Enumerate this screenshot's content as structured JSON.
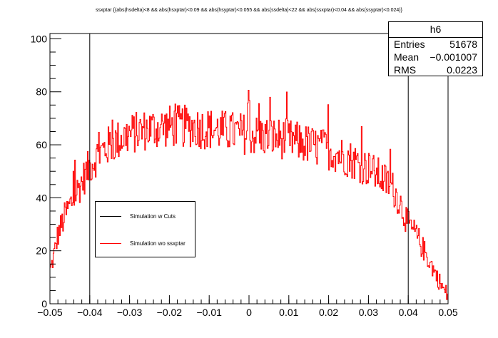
{
  "chart_data": {
    "type": "histogram",
    "title": "ssxptar {(abs(hsdelta)<8 && abs(hsxptar)<0.09 && abs(hsyptar)<0.055 && abs(ssdelta)<22 && abs(ssxptar)<0.04 && abs(ssyptar)<0.024)}",
    "xlim": [
      -0.05,
      0.05
    ],
    "ylim": [
      0,
      102
    ],
    "xticks": [
      -0.05,
      -0.04,
      -0.03,
      -0.02,
      -0.01,
      0,
      0.01,
      0.02,
      0.03,
      0.04,
      0.05
    ],
    "xtick_labels": [
      "−0.05",
      "−0.04",
      "−0.03",
      "−0.02",
      "−0.01",
      "0",
      "0.01",
      "0.02",
      "0.03",
      "0.04",
      "0.05"
    ],
    "yticks": [
      0,
      20,
      40,
      60,
      80,
      100
    ],
    "ytick_labels": [
      "0",
      "20",
      "40",
      "60",
      "80",
      "100"
    ],
    "series": [
      {
        "name": "Simulation w Cuts",
        "color": "#000000",
        "style": "cut-lines",
        "x": [
          -0.04,
          0.04
        ]
      },
      {
        "name": "Simulation wo ssxptar",
        "color": "#ff0000",
        "style": "histogram",
        "bins": 500,
        "profile_x": [
          -0.05,
          -0.049,
          -0.048,
          -0.046,
          -0.044,
          -0.042,
          -0.04,
          -0.038,
          -0.035,
          -0.03,
          -0.025,
          -0.02,
          -0.015,
          -0.01,
          -0.005,
          0,
          0.005,
          0.01,
          0.015,
          0.02,
          0.025,
          0.03,
          0.033,
          0.036,
          0.038,
          0.04,
          0.042,
          0.044,
          0.046,
          0.048,
          0.049,
          0.05
        ],
        "profile_y": [
          12,
          18,
          26,
          34,
          40,
          46,
          52,
          56,
          60,
          64,
          66,
          67,
          67,
          66,
          65,
          64,
          63,
          62,
          60,
          58,
          55,
          51,
          48,
          44,
          38,
          30,
          26,
          20,
          14,
          8,
          5,
          3
        ],
        "noise_amplitude": 7
      }
    ],
    "legend": {
      "placement": "left-middle"
    },
    "stats": {
      "name": "h6",
      "entries": "51678",
      "mean": "−0.001007",
      "rms": "0.0223"
    },
    "stats_labels": {
      "entries": "Entries",
      "mean": "Mean",
      "rms": "RMS"
    }
  }
}
